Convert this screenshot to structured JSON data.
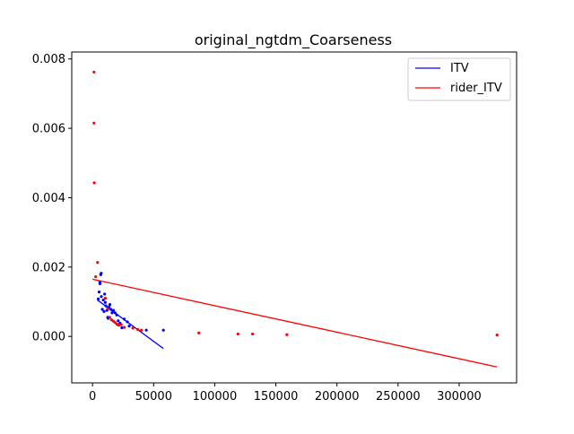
{
  "chart_data": {
    "type": "scatter",
    "title": "original_ngtdm_Coarseness",
    "xlabel": "",
    "ylabel": "",
    "xlim": [
      -17000,
      347000
    ],
    "ylim": [
      -0.00134,
      0.0082
    ],
    "xticks": [
      0,
      50000,
      100000,
      150000,
      200000,
      250000,
      300000
    ],
    "xtick_labels": [
      "0",
      "50000",
      "100000",
      "150000",
      "200000",
      "250000",
      "300000"
    ],
    "yticks": [
      0.0,
      0.002,
      0.004,
      0.006,
      0.008
    ],
    "ytick_labels": [
      "0.000",
      "0.002",
      "0.004",
      "0.006",
      "0.008"
    ],
    "grid": false,
    "legend_position": "top-right",
    "series": [
      {
        "name": "ITV",
        "color": "#0000ff",
        "points": [
          [
            4700,
            0.00108
          ],
          [
            5400,
            0.00128
          ],
          [
            6000,
            0.00158
          ],
          [
            6100,
            0.00152
          ],
          [
            6700,
            0.00178
          ],
          [
            7100,
            0.00182
          ],
          [
            7200,
            0.00115
          ],
          [
            8000,
            0.00078
          ],
          [
            8800,
            0.00105
          ],
          [
            9400,
            0.00072
          ],
          [
            9900,
            0.00122
          ],
          [
            10400,
            0.00098
          ],
          [
            11000,
            0.00088
          ],
          [
            11800,
            0.00075
          ],
          [
            12400,
            0.00055
          ],
          [
            12800,
            0.00052
          ],
          [
            13500,
            0.00085
          ],
          [
            14200,
            0.00092
          ],
          [
            15000,
            0.00078
          ],
          [
            16000,
            0.00068
          ],
          [
            17200,
            0.00075
          ],
          [
            18500,
            0.00068
          ],
          [
            19800,
            0.00062
          ],
          [
            21000,
            0.00045
          ],
          [
            22500,
            0.00038
          ],
          [
            24000,
            0.00025
          ],
          [
            26000,
            0.0005
          ],
          [
            28500,
            0.00042
          ],
          [
            30000,
            0.0003
          ],
          [
            44000,
            0.00018
          ],
          [
            58000,
            0.00018
          ]
        ],
        "fit": [
          [
            4000,
            0.00105
          ],
          [
            58000,
            -0.00035
          ]
        ]
      },
      {
        "name": "rider_ITV",
        "color": "#ff0000",
        "points": [
          [
            1200,
            0.00762
          ],
          [
            1200,
            0.00615
          ],
          [
            1400,
            0.00443
          ],
          [
            2600,
            0.00172
          ],
          [
            4100,
            0.00213
          ],
          [
            10500,
            0.0011
          ],
          [
            12500,
            0.0008
          ],
          [
            14000,
            0.00055
          ],
          [
            15500,
            0.00048
          ],
          [
            17000,
            0.00044
          ],
          [
            18500,
            0.0004
          ],
          [
            20000,
            0.00035
          ],
          [
            21500,
            0.00032
          ],
          [
            23500,
            0.00034
          ],
          [
            26000,
            0.00026
          ],
          [
            33000,
            0.00024
          ],
          [
            37000,
            0.0002
          ],
          [
            40000,
            0.00018
          ],
          [
            87000,
            0.0001
          ],
          [
            119000,
            7e-05
          ],
          [
            131000,
            7e-05
          ],
          [
            159000,
            5e-05
          ],
          [
            331000,
            4e-05
          ]
        ],
        "fit": [
          [
            0,
            0.00165
          ],
          [
            331000,
            -0.00088
          ]
        ]
      }
    ]
  }
}
